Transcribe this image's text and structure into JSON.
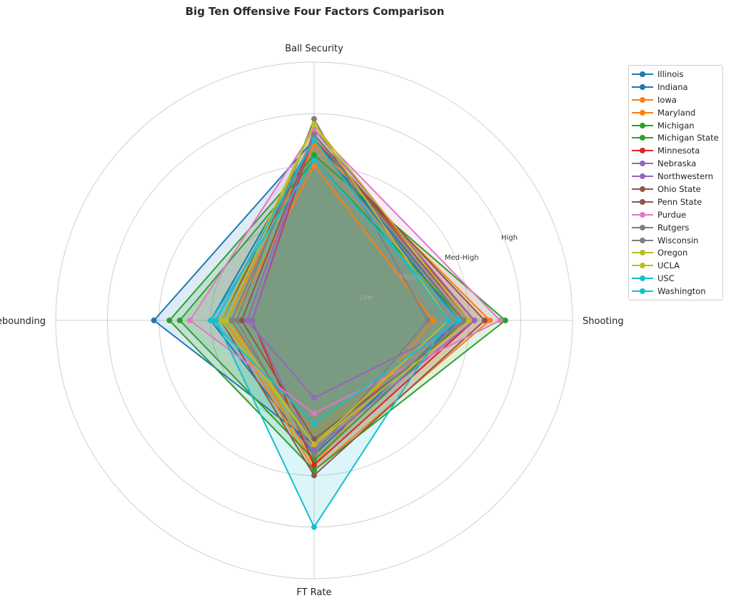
{
  "chart_data": {
    "type": "radar",
    "title": "Big Ten Offensive Four Factors Comparison",
    "axes": [
      "Ball Security",
      "Shooting",
      "FT Rate",
      "Off Rebounding"
    ],
    "radial_ticks": [
      "Low",
      "Medium",
      "Med-High",
      "High"
    ],
    "rlim": [
      0,
      5
    ],
    "grid": true,
    "legend_position": "right",
    "series": [
      {
        "name": "Illinois",
        "color": "#1f77b4",
        "values": [
          3.5,
          2.9,
          2.4,
          3.1
        ]
      },
      {
        "name": "Indiana",
        "color": "#1f77b4",
        "values": [
          3.5,
          2.8,
          2.6,
          2.0
        ]
      },
      {
        "name": "Iowa",
        "color": "#ff7f0e",
        "values": [
          3.4,
          3.4,
          2.9,
          1.7
        ]
      },
      {
        "name": "Maryland",
        "color": "#ff7f0e",
        "values": [
          3.0,
          2.3,
          2.8,
          1.6
        ]
      },
      {
        "name": "Michigan",
        "color": "#2ca02c",
        "values": [
          3.2,
          3.7,
          2.9,
          2.8
        ]
      },
      {
        "name": "Michigan State",
        "color": "#2ca02c",
        "values": [
          3.1,
          2.9,
          2.7,
          2.6
        ]
      },
      {
        "name": "Minnesota",
        "color": "#d62728",
        "values": [
          3.6,
          3.1,
          2.8,
          1.2
        ]
      },
      {
        "name": "Nebraska",
        "color": "#9467bd",
        "values": [
          3.6,
          3.0,
          1.5,
          1.3
        ]
      },
      {
        "name": "Northwestern",
        "color": "#9467bd",
        "values": [
          3.7,
          3.1,
          2.5,
          1.2
        ]
      },
      {
        "name": "Ohio State",
        "color": "#8c564b",
        "values": [
          3.5,
          3.3,
          3.0,
          1.8
        ]
      },
      {
        "name": "Penn State",
        "color": "#8c564b",
        "values": [
          3.6,
          3.0,
          2.3,
          1.4
        ]
      },
      {
        "name": "Purdue",
        "color": "#e377c2",
        "values": [
          3.7,
          3.6,
          1.8,
          2.4
        ]
      },
      {
        "name": "Rutgers",
        "color": "#7f7f7f",
        "values": [
          3.9,
          2.2,
          2.6,
          1.5
        ]
      },
      {
        "name": "Wisconsin",
        "color": "#7f7f7f",
        "values": [
          3.6,
          2.9,
          2.4,
          1.6
        ]
      },
      {
        "name": "Oregon",
        "color": "#bcbd22",
        "values": [
          3.8,
          2.6,
          2.4,
          1.8
        ]
      },
      {
        "name": "UCLA",
        "color": "#bcbd22",
        "values": [
          3.8,
          3.0,
          2.4,
          1.7
        ]
      },
      {
        "name": "USC",
        "color": "#17becf",
        "values": [
          3.5,
          2.6,
          4.0,
          1.9
        ]
      },
      {
        "name": "Washington",
        "color": "#17becf",
        "values": [
          3.1,
          2.8,
          2.0,
          2.0
        ]
      }
    ]
  }
}
